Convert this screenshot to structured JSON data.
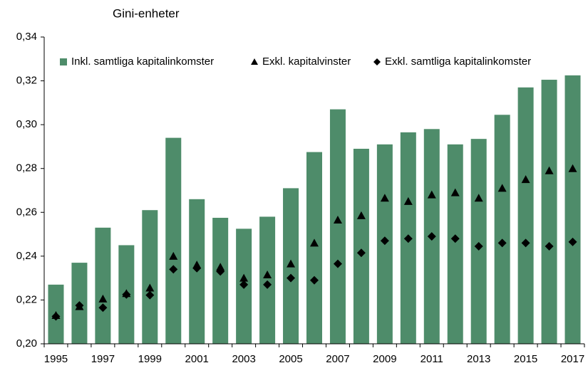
{
  "chart_data": {
    "type": "bar",
    "subtitle": "Gini-enheter",
    "categories": [
      "1995",
      null,
      "1997",
      null,
      "1999",
      null,
      "2001",
      null,
      "2003",
      null,
      "2005",
      null,
      "2007",
      null,
      "2009",
      null,
      "2011",
      null,
      "2013",
      null,
      "2015",
      null,
      "2017"
    ],
    "series": [
      {
        "name": "Inkl. samtliga kapitalinkomster",
        "color": "#4e8c6a",
        "marker": "bar",
        "values": [
          0.227,
          0.237,
          0.253,
          0.245,
          0.261,
          0.294,
          0.266,
          0.2575,
          0.2525,
          0.258,
          0.271,
          0.2875,
          0.307,
          0.289,
          0.291,
          0.2965,
          0.298,
          0.291,
          0.2935,
          0.3045,
          0.317,
          0.3205,
          0.3225
        ]
      },
      {
        "name": "Exkl. kapitalvinster",
        "color": "#000000",
        "marker": "triangle",
        "values": [
          0.213,
          0.217,
          0.2205,
          0.223,
          0.2255,
          0.24,
          0.236,
          0.235,
          0.23,
          0.2315,
          0.2365,
          0.246,
          0.2565,
          0.2585,
          0.2665,
          0.265,
          0.268,
          0.269,
          0.2665,
          0.271,
          0.275,
          0.279,
          0.28
        ]
      },
      {
        "name": "Exkl. samtliga kapitalinkomster",
        "color": "#000000",
        "marker": "diamond",
        "values": [
          0.2125,
          0.2175,
          0.2165,
          0.2225,
          0.2222,
          0.234,
          0.2345,
          0.233,
          0.227,
          0.227,
          0.23,
          0.229,
          0.2365,
          0.2415,
          0.247,
          0.248,
          0.249,
          0.248,
          0.2445,
          0.246,
          0.246,
          0.2445,
          0.2465
        ]
      }
    ],
    "ylim": [
      0.2,
      0.34
    ],
    "yticks": [
      {
        "value": 0.2,
        "label": "0,20"
      },
      {
        "value": 0.22,
        "label": "0,22"
      },
      {
        "value": 0.24,
        "label": "0,24"
      },
      {
        "value": 0.26,
        "label": "0,26"
      },
      {
        "value": 0.28,
        "label": "0,28"
      },
      {
        "value": 0.3,
        "label": "0,30"
      },
      {
        "value": 0.32,
        "label": "0,32"
      },
      {
        "value": 0.34,
        "label": "0,34"
      }
    ],
    "grid": false,
    "legend": "top"
  }
}
